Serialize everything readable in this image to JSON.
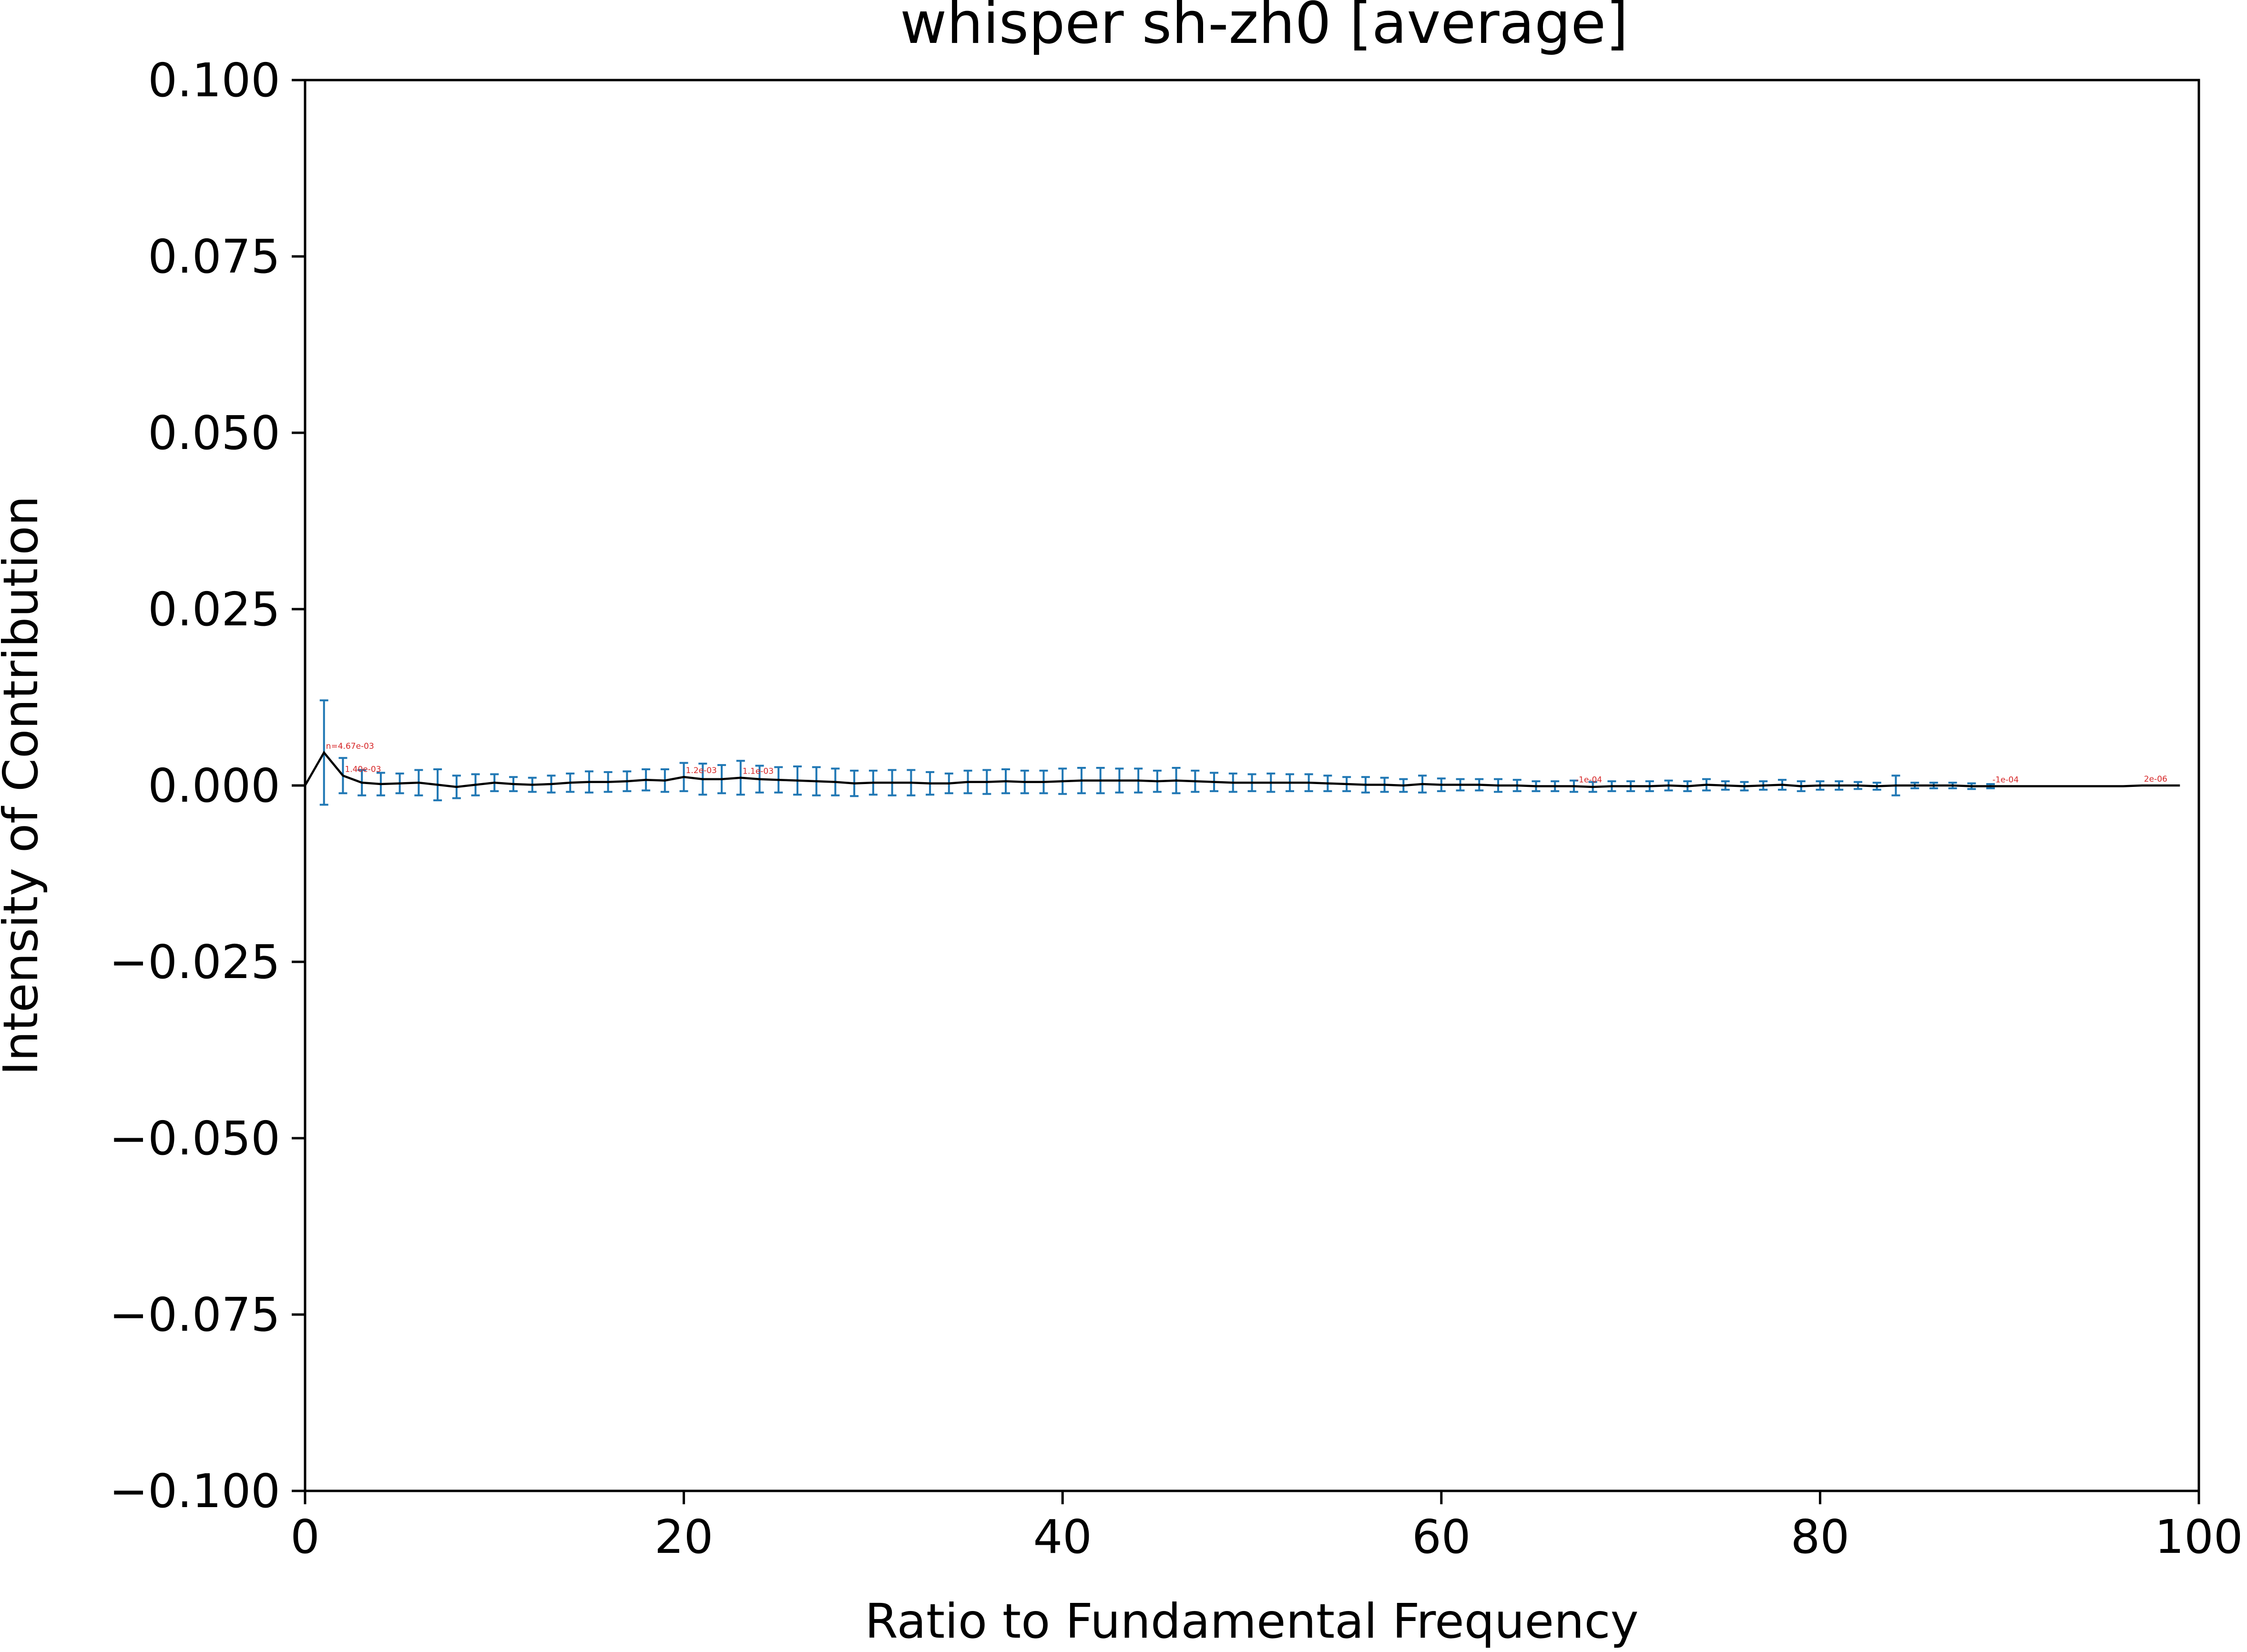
{
  "chart_data": {
    "type": "line",
    "title": "whisper sh-zh0 [average]",
    "xlabel": "Ratio to Fundamental Frequency",
    "ylabel": "Intensity of Contribution",
    "xlim": [
      0,
      100
    ],
    "ylim": [
      -0.1,
      0.1
    ],
    "x_ticks": [
      "0",
      "20",
      "40",
      "60",
      "80",
      "100"
    ],
    "y_ticks": [
      "0.100",
      "0.075",
      "0.050",
      "0.025",
      "0.000",
      "−0.025",
      "−0.050",
      "−0.075",
      "−0.100"
    ],
    "y_tick_values": [
      0.1,
      0.075,
      0.05,
      0.025,
      0.0,
      -0.025,
      -0.05,
      -0.075,
      -0.1
    ],
    "x_tick_values": [
      0,
      20,
      40,
      60,
      80,
      100
    ],
    "grid": false,
    "series": [
      {
        "color": "#000000",
        "x": [
          0,
          1,
          2,
          3,
          4,
          5,
          6,
          7,
          8,
          9,
          10,
          11,
          12,
          13,
          14,
          15,
          16,
          17,
          18,
          19,
          20,
          21,
          22,
          23,
          24,
          25,
          26,
          27,
          28,
          29,
          30,
          31,
          32,
          33,
          34,
          35,
          36,
          37,
          38,
          39,
          40,
          41,
          42,
          43,
          44,
          45,
          46,
          47,
          48,
          49,
          50,
          51,
          52,
          53,
          54,
          55,
          56,
          57,
          58,
          59,
          60,
          61,
          62,
          63,
          64,
          65,
          66,
          67,
          68,
          69,
          70,
          71,
          72,
          73,
          74,
          75,
          76,
          77,
          78,
          79,
          80,
          81,
          82,
          83,
          84,
          85,
          86,
          87,
          88,
          89,
          90,
          91,
          92,
          93,
          94,
          95,
          96,
          97,
          98,
          99
        ],
        "y": [
          0.0,
          0.00467,
          0.0014,
          0.0004,
          0.0002,
          0.0003,
          0.0004,
          0.0001,
          -0.0002,
          0.0001,
          0.0004,
          0.0002,
          0.0001,
          0.0002,
          0.0004,
          0.0005,
          0.0005,
          0.0006,
          0.0008,
          0.0007,
          0.0012,
          0.0009,
          0.0009,
          0.0011,
          0.0009,
          0.0008,
          0.0007,
          0.0006,
          0.0005,
          0.0003,
          0.0004,
          0.0004,
          0.0004,
          0.0003,
          0.0003,
          0.0005,
          0.0005,
          0.0006,
          0.0005,
          0.0005,
          0.0006,
          0.0007,
          0.0007,
          0.0007,
          0.0007,
          0.0006,
          0.0007,
          0.0006,
          0.0005,
          0.0004,
          0.0004,
          0.0004,
          0.0004,
          0.0004,
          0.0003,
          0.0002,
          0.0001,
          0.0001,
          0.0,
          0.0002,
          0.0001,
          0.0001,
          0.0001,
          0.0,
          0.0,
          -0.0001,
          -0.0001,
          -0.0001,
          -0.0002,
          -0.0001,
          -0.0001,
          -0.0001,
          0.0,
          -0.0001,
          0.0001,
          0.0,
          -0.0001,
          0.0,
          0.0001,
          -0.0001,
          0.0,
          0.0,
          0.0,
          -0.0001,
          0.0,
          0.0,
          0.0,
          0.0,
          -0.0001,
          -0.0001,
          -0.0001,
          -0.0001,
          -0.0001,
          -0.0001,
          -0.0001,
          -0.0001,
          -0.0001,
          0.0,
          0.0,
          0.0
        ]
      }
    ],
    "error_bars": {
      "color": "#1f77b4",
      "x": [
        1,
        2,
        3,
        4,
        5,
        6,
        7,
        8,
        9,
        10,
        11,
        12,
        13,
        14,
        15,
        16,
        17,
        18,
        19,
        20,
        21,
        22,
        23,
        24,
        25,
        26,
        27,
        28,
        29,
        30,
        31,
        32,
        33,
        34,
        35,
        36,
        37,
        38,
        39,
        40,
        41,
        42,
        43,
        44,
        45,
        46,
        47,
        48,
        49,
        50,
        51,
        52,
        53,
        54,
        55,
        56,
        57,
        58,
        59,
        60,
        61,
        62,
        63,
        64,
        65,
        66,
        67,
        68,
        69,
        70,
        71,
        72,
        73,
        74,
        75,
        76,
        77,
        78,
        79,
        80,
        81,
        82,
        83,
        84,
        85,
        86,
        87,
        88,
        89
      ],
      "y": [
        0.00467,
        0.0014,
        0.0004,
        0.0002,
        0.0003,
        0.0004,
        0.0001,
        -0.0002,
        0.0001,
        0.0004,
        0.0002,
        0.0001,
        0.0002,
        0.0004,
        0.0005,
        0.0005,
        0.0006,
        0.0008,
        0.0007,
        0.0012,
        0.0009,
        0.0009,
        0.0011,
        0.0009,
        0.0008,
        0.0007,
        0.0006,
        0.0005,
        0.0003,
        0.0004,
        0.0004,
        0.0004,
        0.0003,
        0.0003,
        0.0005,
        0.0005,
        0.0006,
        0.0005,
        0.0005,
        0.0006,
        0.0007,
        0.0007,
        0.0007,
        0.0007,
        0.0006,
        0.0007,
        0.0006,
        0.0005,
        0.0004,
        0.0004,
        0.0004,
        0.0004,
        0.0004,
        0.0003,
        0.0002,
        0.0001,
        0.0001,
        0.0,
        0.0002,
        0.0001,
        0.0001,
        0.0001,
        0.0,
        0.0,
        -0.0001,
        -0.0001,
        -0.0001,
        -0.0002,
        -0.0001,
        -0.0001,
        -0.0001,
        0.0,
        -0.0001,
        0.0001,
        0.0,
        -0.0001,
        0.0,
        0.0001,
        -0.0001,
        0.0,
        0.0,
        0.0,
        -0.0001,
        0.0,
        0.0,
        0.0,
        0.0,
        -0.0001,
        -0.0001
      ],
      "err": [
        0.0074,
        0.0025,
        0.0018,
        0.0016,
        0.0014,
        0.0018,
        0.0022,
        0.0016,
        0.0015,
        0.0012,
        0.001,
        0.001,
        0.0012,
        0.0013,
        0.0015,
        0.0014,
        0.0014,
        0.0015,
        0.0016,
        0.002,
        0.0022,
        0.002,
        0.0024,
        0.0019,
        0.0018,
        0.002,
        0.002,
        0.0019,
        0.0018,
        0.0017,
        0.0018,
        0.0018,
        0.0016,
        0.0014,
        0.0016,
        0.0017,
        0.0017,
        0.0016,
        0.0016,
        0.0018,
        0.0018,
        0.0018,
        0.0017,
        0.0017,
        0.0015,
        0.0018,
        0.0015,
        0.0013,
        0.0013,
        0.0012,
        0.0013,
        0.0012,
        0.0012,
        0.0011,
        0.001,
        0.0011,
        0.001,
        0.0009,
        0.0012,
        0.0009,
        0.0008,
        0.0008,
        0.0009,
        0.0008,
        0.0007,
        0.0007,
        0.0008,
        0.0007,
        0.0007,
        0.0007,
        0.0007,
        0.0007,
        0.0007,
        0.0008,
        0.0006,
        0.0006,
        0.0006,
        0.0007,
        0.0007,
        0.0006,
        0.0006,
        0.0005,
        0.0005,
        0.0014,
        0.0004,
        0.0004,
        0.0004,
        0.0004,
        0.0003
      ]
    },
    "annotations": [
      {
        "x": 1,
        "y": 0.00467,
        "text": "n=4.67e-03"
      },
      {
        "x": 2,
        "y": 0.0014,
        "text": "1.40e-03"
      },
      {
        "x": 20,
        "y": 0.0012,
        "text": "1.2e-03"
      },
      {
        "x": 23,
        "y": 0.0011,
        "text": "1.1e-03"
      },
      {
        "x": 67,
        "y": -0.0001,
        "text": "-1e-04"
      },
      {
        "x": 89,
        "y": -0.0001,
        "text": "-1e-04"
      },
      {
        "x": 97,
        "y": 0.0,
        "text": "2e-06"
      }
    ]
  }
}
